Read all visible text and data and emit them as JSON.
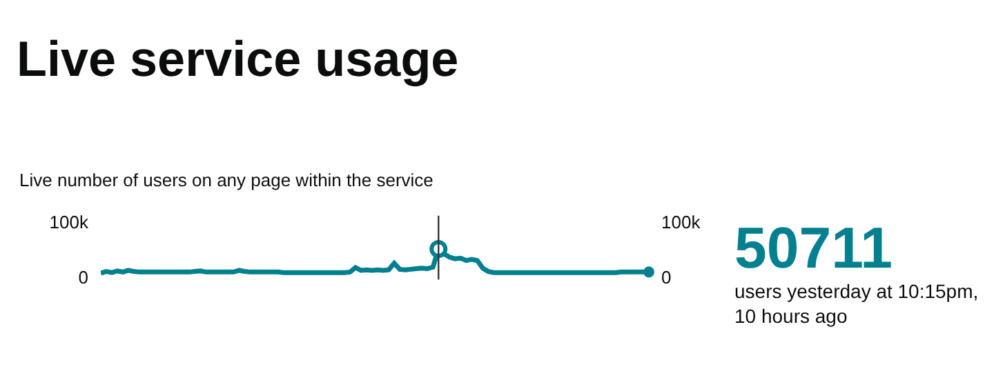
{
  "chart_data": {
    "type": "line",
    "title": "Live service usage",
    "subtitle": "Live number of users on any page within the service",
    "categories": [
      null,
      null,
      null,
      null,
      null,
      null,
      null,
      null,
      null,
      null,
      null,
      null,
      null,
      null,
      null,
      null,
      null,
      null,
      null,
      null,
      null,
      null,
      null,
      null,
      null,
      null,
      null,
      null,
      null,
      null,
      null,
      null,
      null,
      null,
      null,
      null,
      null,
      null,
      null,
      null,
      null,
      null,
      null,
      null,
      null,
      null,
      null,
      null,
      null,
      null,
      null,
      null,
      null,
      null,
      null,
      null,
      null,
      null,
      null,
      null,
      null,
      null,
      null,
      null,
      null,
      null,
      null,
      null,
      null,
      null,
      null,
      null,
      null,
      null,
      null,
      null,
      null,
      null,
      null,
      null,
      null,
      null,
      null,
      null,
      null,
      null,
      null,
      null,
      null,
      null,
      null,
      null,
      null,
      null,
      null,
      null,
      null,
      null,
      null,
      null
    ],
    "series": [
      {
        "color": "#028090",
        "axis": "y",
        "values": [
          7000,
          10000,
          8000,
          11000,
          9000,
          12000,
          10000,
          9000,
          9000,
          9000,
          9000,
          9000,
          9000,
          9000,
          9000,
          9000,
          9000,
          10000,
          11000,
          9000,
          9000,
          9000,
          9000,
          9000,
          9000,
          12000,
          10000,
          9000,
          9000,
          9000,
          9000,
          9000,
          9000,
          8000,
          8000,
          8000,
          8000,
          8000,
          8000,
          8000,
          8000,
          8000,
          8000,
          8000,
          8000,
          9000,
          17000,
          12000,
          13000,
          12000,
          13000,
          12000,
          13000,
          25000,
          14000,
          13000,
          14000,
          15000,
          16000,
          15000,
          18000,
          50711,
          42000,
          36000,
          33000,
          34000,
          30000,
          32000,
          30000,
          16000,
          10000,
          8000,
          8000,
          8000,
          8000,
          8000,
          8000,
          8000,
          8000,
          8000,
          8000,
          8000,
          8000,
          8000,
          8000,
          8000,
          8000,
          8000,
          8000,
          8000,
          8000,
          8000,
          8000,
          8000,
          9000,
          9000,
          9000,
          9000,
          9000,
          9000
        ]
      }
    ],
    "ylim": [
      0,
      100000
    ],
    "yticks": [
      0,
      {
        "value": 100000,
        "label": "100k"
      }
    ],
    "y2lim": [
      0,
      100000
    ],
    "y2ticks": [
      0,
      {
        "value": 100000,
        "label": "100k"
      }
    ],
    "marker": "none",
    "line_style": "solid",
    "annotations": [
      "50711",
      "users yesterday at 10:15pm,\n10 hours ago"
    ]
  }
}
